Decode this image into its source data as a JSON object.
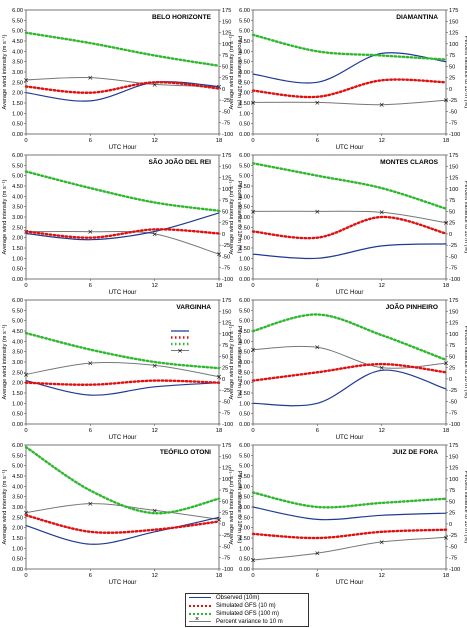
{
  "x_axis_label": "UTC Hour",
  "y_left_label": "Average wind intensity (m s⁻¹)",
  "y_right_label": "Percent variance to 10 m (%)",
  "y_left_ticks": [
    "6.00",
    "5.50",
    "5.00",
    "4.50",
    "4.00",
    "3.50",
    "3.00",
    "2.50",
    "2.00",
    "1.50",
    "1.00",
    "0.50",
    "0.00"
  ],
  "y_right_ticks": [
    "175",
    "150",
    "125",
    "100",
    "75",
    "50",
    "25",
    "0",
    "-25",
    "-50",
    "-75",
    "-100"
  ],
  "x_ticks": [
    "0",
    "6",
    "12",
    "18"
  ],
  "colors": {
    "observed": "#1f3a93",
    "gfs10": "#e01010",
    "gfs100": "#2fb82f",
    "percent": "#777777"
  },
  "legend": {
    "observed": "Observed (10m)",
    "gfs10": "Simulated GFS (10 m)",
    "gfs100": "Simulated GFS (100 m)",
    "percent": "Percent variance to 10 m"
  },
  "chart_data": [
    {
      "type": "line",
      "title": "BELO HORIZONTE",
      "x": [
        0,
        6,
        12,
        18
      ],
      "ylim": [
        0,
        6
      ],
      "y2lim": [
        -100,
        175
      ],
      "series": [
        {
          "name": "Observed (10m)",
          "values": [
            2.0,
            1.6,
            2.5,
            2.3
          ]
        },
        {
          "name": "Simulated GFS (10 m)",
          "values": [
            2.3,
            2.0,
            2.5,
            2.2
          ]
        },
        {
          "name": "Simulated GFS (100 m)",
          "values": [
            4.9,
            4.4,
            3.8,
            3.3
          ]
        },
        {
          "name": "Percent variance to 10 m",
          "axis": "right",
          "values": [
            20,
            25,
            10,
            5
          ]
        }
      ]
    },
    {
      "type": "line",
      "title": "DIAMANTINA",
      "x": [
        0,
        6,
        12,
        18
      ],
      "ylim": [
        0,
        6
      ],
      "y2lim": [
        -100,
        175
      ],
      "series": [
        {
          "name": "Observed (10m)",
          "values": [
            2.9,
            2.5,
            3.9,
            3.5
          ]
        },
        {
          "name": "Simulated GFS (10 m)",
          "values": [
            2.1,
            1.8,
            2.6,
            2.5
          ]
        },
        {
          "name": "Simulated GFS (100 m)",
          "values": [
            4.8,
            4.0,
            3.8,
            3.6
          ]
        },
        {
          "name": "Percent variance to 10 m",
          "axis": "right",
          "values": [
            -30,
            -30,
            -35,
            -25
          ]
        }
      ]
    },
    {
      "type": "line",
      "title": "SÃO JOÃO DEL REI",
      "x": [
        0,
        6,
        12,
        18
      ],
      "ylim": [
        0,
        6
      ],
      "y2lim": [
        -100,
        175
      ],
      "series": [
        {
          "name": "Observed (10m)",
          "values": [
            2.2,
            1.9,
            2.3,
            3.2
          ]
        },
        {
          "name": "Simulated GFS (10 m)",
          "values": [
            2.3,
            2.0,
            2.4,
            2.2
          ]
        },
        {
          "name": "Simulated GFS (100 m)",
          "values": [
            5.2,
            4.4,
            3.7,
            3.3
          ]
        },
        {
          "name": "Percent variance to 10 m",
          "axis": "right",
          "values": [
            5,
            5,
            0,
            -45
          ]
        }
      ]
    },
    {
      "type": "line",
      "title": "MONTES CLAROS",
      "x": [
        0,
        6,
        12,
        18
      ],
      "ylim": [
        0,
        6
      ],
      "y2lim": [
        -100,
        175
      ],
      "series": [
        {
          "name": "Observed (10m)",
          "values": [
            1.2,
            1.0,
            1.6,
            1.7
          ]
        },
        {
          "name": "Simulated GFS (10 m)",
          "values": [
            2.3,
            2.0,
            3.0,
            2.2
          ]
        },
        {
          "name": "Simulated GFS (100 m)",
          "values": [
            5.6,
            5.0,
            4.4,
            3.4
          ]
        },
        {
          "name": "Percent variance to 10 m",
          "axis": "right",
          "values": [
            50,
            50,
            48,
            25
          ]
        }
      ]
    },
    {
      "type": "line",
      "title": "VARGINHA",
      "x": [
        0,
        6,
        12,
        18
      ],
      "ylim": [
        0,
        6
      ],
      "y2lim": [
        -100,
        175
      ],
      "series": [
        {
          "name": "Observed (10m)",
          "values": [
            2.1,
            1.4,
            1.8,
            2.0
          ]
        },
        {
          "name": "Simulated GFS (10 m)",
          "values": [
            2.0,
            1.9,
            2.1,
            2.0
          ]
        },
        {
          "name": "Simulated GFS (100 m)",
          "values": [
            4.4,
            3.6,
            3.0,
            2.7
          ]
        },
        {
          "name": "Percent variance to 10 m",
          "axis": "right",
          "values": [
            10,
            35,
            30,
            5
          ]
        }
      ]
    },
    {
      "type": "line",
      "title": "JOÃO PINHEIRO",
      "x": [
        0,
        6,
        12,
        18
      ],
      "ylim": [
        0,
        6
      ],
      "y2lim": [
        -100,
        175
      ],
      "series": [
        {
          "name": "Observed (10m)",
          "values": [
            1.0,
            1.0,
            2.6,
            1.7
          ]
        },
        {
          "name": "Simulated GFS (10 m)",
          "values": [
            2.1,
            2.5,
            2.9,
            2.5
          ]
        },
        {
          "name": "Simulated GFS (100 m)",
          "values": [
            4.5,
            5.3,
            4.3,
            3.1
          ]
        },
        {
          "name": "Percent variance to 10 m",
          "axis": "right",
          "values": [
            65,
            70,
            25,
            35
          ]
        }
      ]
    },
    {
      "type": "line",
      "title": "TEÓFILO OTONI",
      "x": [
        0,
        6,
        12,
        18
      ],
      "ylim": [
        0,
        6
      ],
      "y2lim": [
        -100,
        175
      ],
      "series": [
        {
          "name": "Observed (10m)",
          "values": [
            2.1,
            1.2,
            1.8,
            2.5
          ]
        },
        {
          "name": "Simulated GFS (10 m)",
          "values": [
            2.6,
            1.8,
            1.9,
            2.3
          ]
        },
        {
          "name": "Simulated GFS (100 m)",
          "values": [
            5.9,
            3.8,
            2.7,
            3.4
          ]
        },
        {
          "name": "Percent variance to 10 m",
          "axis": "right",
          "values": [
            25,
            45,
            30,
            10
          ]
        }
      ]
    },
    {
      "type": "line",
      "title": "JUIZ DE FORA",
      "x": [
        0,
        6,
        12,
        18
      ],
      "ylim": [
        0,
        6
      ],
      "y2lim": [
        -100,
        175
      ],
      "series": [
        {
          "name": "Observed (10m)",
          "values": [
            3.0,
            2.4,
            2.6,
            2.7
          ]
        },
        {
          "name": "Simulated GFS (10 m)",
          "values": [
            1.7,
            1.5,
            1.8,
            1.9
          ]
        },
        {
          "name": "Simulated GFS (100 m)",
          "values": [
            3.7,
            3.0,
            3.2,
            3.4
          ]
        },
        {
          "name": "Percent variance to 10 m",
          "axis": "right",
          "values": [
            -80,
            -65,
            -40,
            -30
          ]
        }
      ]
    }
  ]
}
